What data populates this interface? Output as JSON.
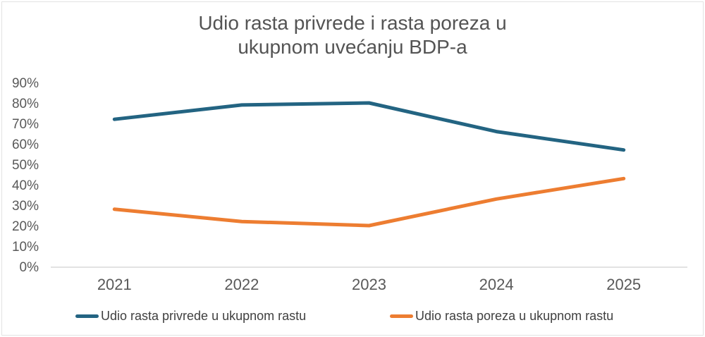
{
  "chart_data": {
    "type": "line",
    "title": "Udio rasta privrede i rasta poreza u ukupnom uvećanju BDP-a",
    "title_lines": [
      "Udio rasta privrede i rasta poreza u",
      "ukupnom uvećanju BDP-a"
    ],
    "categories": [
      "2021",
      "2022",
      "2023",
      "2024",
      "2025"
    ],
    "series": [
      {
        "name": "Udio rasta privrede u ukupnom rastu",
        "color": "#236482",
        "values": [
          72,
          79,
          80,
          66,
          57
        ]
      },
      {
        "name": "Udio rasta poreza u ukupnom rastu",
        "color": "#ED7D31",
        "values": [
          28,
          22,
          20,
          33,
          43
        ]
      }
    ],
    "xlabel": "",
    "ylabel": "",
    "y_tick_labels": [
      "90%",
      "80%",
      "70%",
      "60%",
      "50%",
      "40%",
      "30%",
      "20%",
      "10%",
      "0%"
    ],
    "ylim": [
      0,
      90
    ],
    "y_step": 10,
    "grid": false,
    "legend_position": "bottom"
  },
  "colors": {
    "title_text": "#545454",
    "tick_label": "#595959",
    "axis_line": "#D9D9D9",
    "legend_text": "#404040",
    "background": "#FFFFFF",
    "frame_border": "#E3E3E3"
  }
}
